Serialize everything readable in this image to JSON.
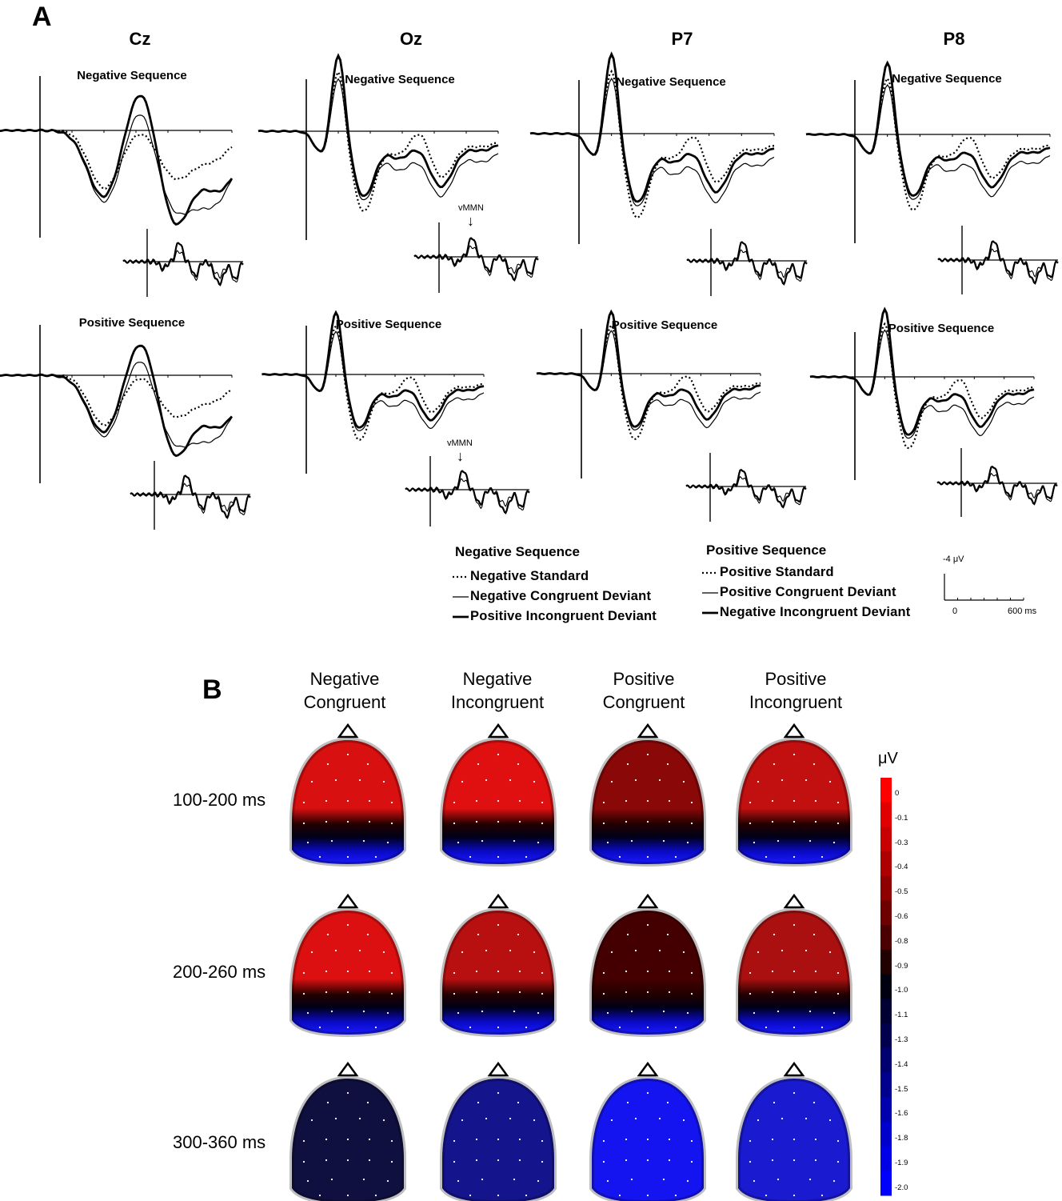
{
  "panel_a": {
    "letter": "A",
    "electrodes": [
      "Cz",
      "Oz",
      "P7",
      "P8"
    ],
    "sequences": [
      "Negative Sequence",
      "Positive Sequence"
    ],
    "vmmn_label": "vMMN",
    "vmmn_arrow": "↓",
    "legend": {
      "negative": {
        "title": "Negative Sequence",
        "items": [
          {
            "label": "Negative Standard",
            "style": "dotted"
          },
          {
            "label": "Negative Congruent Deviant",
            "style": "thin"
          },
          {
            "label": "Positive Incongruent Deviant",
            "style": "thick"
          }
        ]
      },
      "positive": {
        "title": "Positive Sequence",
        "items": [
          {
            "label": "Positive Standard",
            "style": "dotted"
          },
          {
            "label": "Positive Congruent Deviant",
            "style": "thin"
          },
          {
            "label": "Negative Incongruent Deviant",
            "style": "thick"
          }
        ]
      }
    },
    "scale": {
      "amplitude": "-4 μV",
      "t0": "0",
      "t_end": "600 ms"
    }
  },
  "panel_b": {
    "letter": "B",
    "conditions": [
      {
        "line1": "Negative",
        "line2": "Congruent"
      },
      {
        "line1": "Negative",
        "line2": "Incongruent"
      },
      {
        "line1": "Positive",
        "line2": "Congruent"
      },
      {
        "line1": "Positive",
        "line2": "Incongruent"
      }
    ],
    "time_windows": [
      "100-200 ms",
      "200-260 ms",
      "300-360 ms"
    ],
    "colorbar": {
      "unit": "μV",
      "ticks": [
        "0",
        "-0.1",
        "-0.3",
        "-0.4",
        "-0.5",
        "-0.6",
        "-0.8",
        "-0.9",
        "-1.0",
        "-1.1",
        "-1.3",
        "-1.4",
        "-1.5",
        "-1.6",
        "-1.8",
        "-1.9",
        "-2.0"
      ],
      "colors": [
        "#ff0000",
        "#e00000",
        "#c80000",
        "#ad0000",
        "#8f0000",
        "#6e0000",
        "#4a0000",
        "#200000",
        "#000010",
        "#000033",
        "#00004f",
        "#000070",
        "#00008f",
        "#0000ad",
        "#0000cc",
        "#0000e6",
        "#0000ff"
      ]
    },
    "maps_front_color": [
      [
        "#d81010",
        "#e01010",
        "#8a0808",
        "#c21010"
      ],
      [
        "#dc1010",
        "#b81010",
        "#440000",
        "#aa1010"
      ],
      [
        "#101040",
        "#14148c",
        "#1414f0",
        "#1a1ad0"
      ]
    ]
  }
}
